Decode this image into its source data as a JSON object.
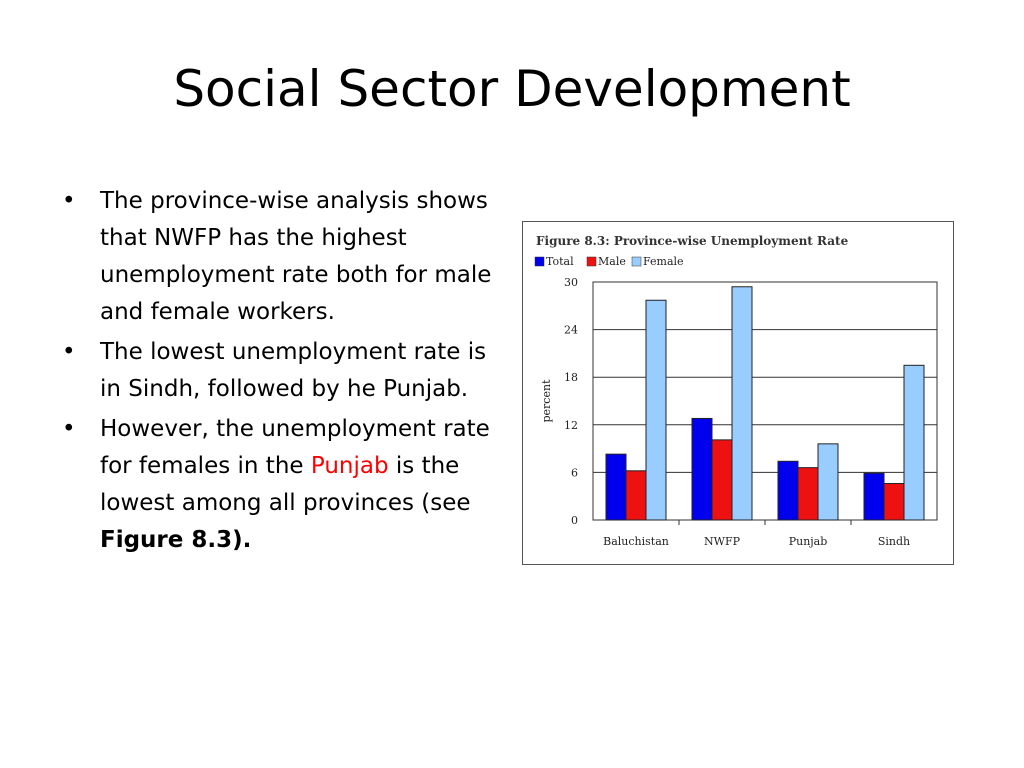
{
  "slide": {
    "title": "Social Sector Development",
    "bullets": [
      {
        "parts": [
          "The province-wise analysis shows that NWFP has the highest unemployment rate both for male and female workers."
        ]
      },
      {
        "parts": [
          "The lowest unemployment rate is in Sindh, followed by he Punjab."
        ]
      },
      {
        "parts": [
          "However, the unemployment rate for females in the ",
          "Punjab",
          " is the lowest among all provinces (see ",
          "Figure 8.3)."
        ]
      }
    ]
  },
  "colors": {
    "total": "#0000ee",
    "male": "#ee1111",
    "female": "#99ccff",
    "highlight": "#ff0000"
  },
  "chart_data": {
    "type": "bar",
    "title": "Figure 8.3: Province-wise Unemployment Rate",
    "categories": [
      "Baluchistan",
      "NWFP",
      "Punjab",
      "Sindh"
    ],
    "series": [
      {
        "name": "Total",
        "values": [
          8.3,
          12.8,
          7.4,
          5.9
        ]
      },
      {
        "name": "Male",
        "values": [
          6.2,
          10.1,
          6.6,
          4.6
        ]
      },
      {
        "name": "Female",
        "values": [
          27.7,
          29.4,
          9.6,
          19.5
        ]
      }
    ],
    "ylabel": "percent",
    "ylim": [
      0,
      30
    ],
    "yticks": [
      0,
      6,
      12,
      18,
      24,
      30
    ],
    "grid": true,
    "legend": "top-left"
  }
}
